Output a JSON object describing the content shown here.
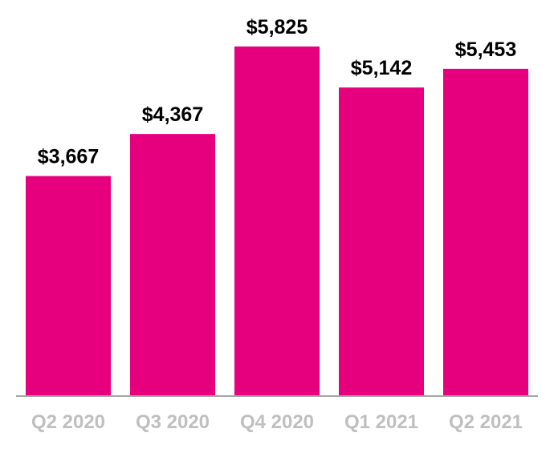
{
  "chart_data": {
    "type": "bar",
    "title": "",
    "xlabel": "",
    "ylabel": "",
    "categories": [
      "Q2 2020",
      "Q3 2020",
      "Q4 2020",
      "Q1 2021",
      "Q2 2021"
    ],
    "values": [
      3667,
      4367,
      5825,
      5142,
      5453
    ],
    "value_labels": [
      "$3,667",
      "$4,367",
      "$5,825",
      "$5,142",
      "$5,453"
    ],
    "ylim": [
      0,
      5825
    ],
    "grid": false,
    "legend": "none",
    "colors": {
      "bar": "#e6007e",
      "axis": "#a6a6a6",
      "tick_label": "#bfbfbf",
      "value_label": "#000000"
    }
  }
}
